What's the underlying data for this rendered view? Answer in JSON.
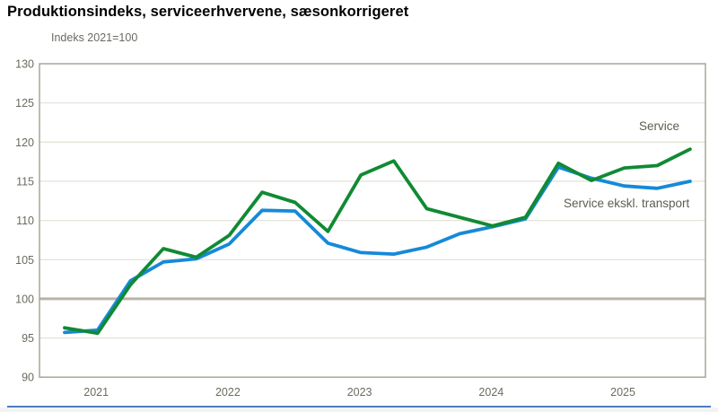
{
  "title": "Produktionsindeks, serviceerhvervene, sæsonkorrigeret",
  "subtitle": "Indeks 2021=100",
  "chart_data": {
    "type": "line",
    "title": "Produktionsindeks, serviceerhvervene, sæsonkorrigeret",
    "unit_label": "Indeks 2021=100",
    "categories": [
      "2020Q4",
      "2021Q1",
      "2021Q2",
      "2021Q3",
      "2021Q4",
      "2022Q1",
      "2022Q2",
      "2022Q3",
      "2022Q4",
      "2023Q1",
      "2023Q2",
      "2023Q3",
      "2023Q4",
      "2024Q1",
      "2024Q2",
      "2024Q3",
      "2024Q4",
      "2025Q1",
      "2025Q2",
      "2025Q3"
    ],
    "x_tick_labels": [
      "2021",
      "2022",
      "2023",
      "2024",
      "2025"
    ],
    "y_ticks": [
      90,
      95,
      100,
      105,
      110,
      115,
      120,
      125,
      130
    ],
    "ylim": [
      90,
      130
    ],
    "baseline": 100,
    "grid": "horizontal",
    "legend_position": "inline-right",
    "series": [
      {
        "name": "Service",
        "color": "#108a33",
        "values": [
          96.3,
          95.6,
          101.8,
          106.4,
          105.3,
          108.1,
          113.6,
          112.3,
          108.6,
          115.8,
          117.6,
          111.5,
          110.4,
          109.3,
          110.4,
          117.3,
          115.1,
          116.7,
          117.0,
          119.1
        ]
      },
      {
        "name": "Service ekskl. transport",
        "color": "#1689d8",
        "values": [
          95.7,
          96.0,
          102.3,
          104.7,
          105.1,
          107.0,
          111.3,
          111.2,
          107.1,
          105.9,
          105.7,
          106.6,
          108.3,
          109.2,
          110.2,
          116.8,
          115.4,
          114.4,
          114.1,
          115.0
        ]
      }
    ],
    "colors": {
      "grid": "#e5e3da",
      "baseline_line": "#b7b4a6",
      "frame": "#a8a598",
      "tick_text": "#6b6b60"
    }
  }
}
